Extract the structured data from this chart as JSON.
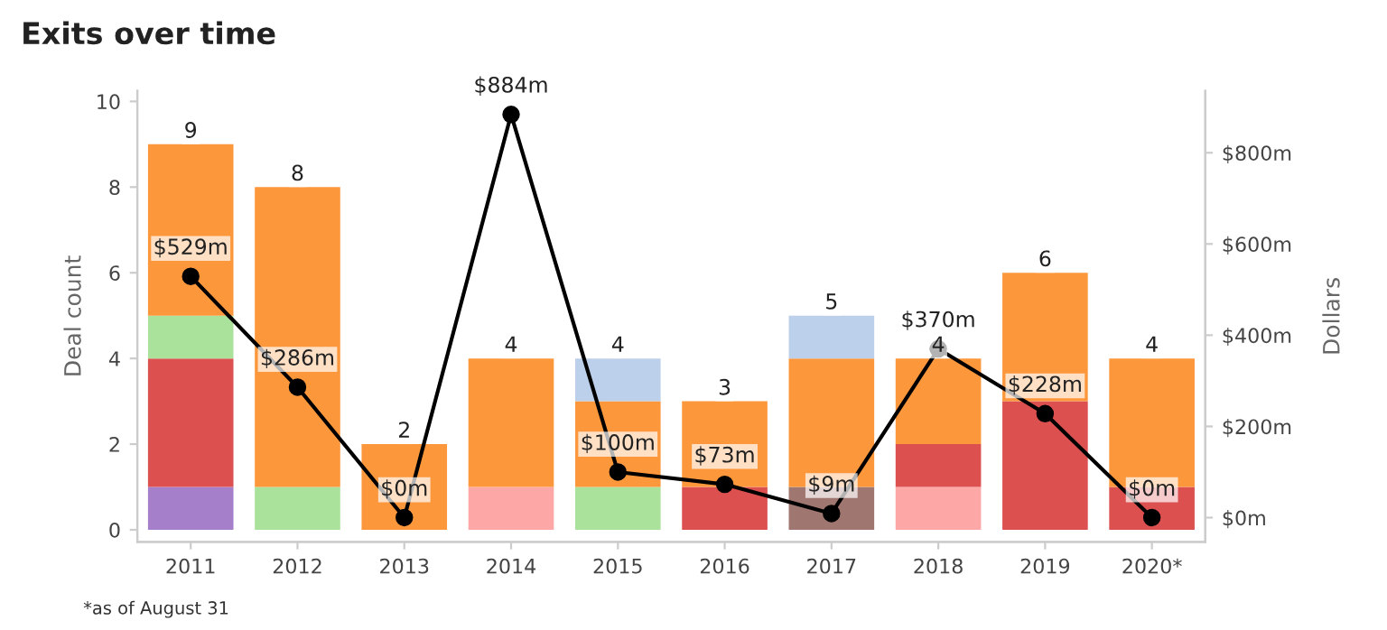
{
  "chart_data": {
    "type": "bar",
    "title": "Exits over time",
    "ylabel": "Deal count",
    "y2label": "Dollars",
    "categories": [
      "2011",
      "2012",
      "2013",
      "2014",
      "2015",
      "2016",
      "2017",
      "2018",
      "2019",
      "2020*"
    ],
    "stacked": true,
    "series": [
      {
        "color": "#a57fc9",
        "values": [
          1,
          0,
          0,
          0,
          0,
          0,
          0,
          0,
          0,
          0
        ]
      },
      {
        "color": "#fea7a7",
        "values": [
          0,
          0,
          0,
          1,
          0,
          0,
          0,
          1,
          0,
          0
        ]
      },
      {
        "color": "#a07670",
        "values": [
          0,
          0,
          0,
          0,
          0,
          0,
          1,
          0,
          0,
          0
        ]
      },
      {
        "color": "#dc5050",
        "values": [
          3,
          0,
          0,
          0,
          0,
          1,
          0,
          1,
          3,
          1
        ]
      },
      {
        "color": "#abe29b",
        "values": [
          1,
          1,
          0,
          0,
          1,
          0,
          0,
          0,
          0,
          0
        ]
      },
      {
        "color": "#fd973b",
        "values": [
          4,
          7,
          2,
          3,
          2,
          2,
          3,
          2,
          3,
          3
        ]
      },
      {
        "color": "#bcd0eb",
        "values": [
          0,
          0,
          0,
          0,
          1,
          0,
          1,
          0,
          0,
          0
        ]
      },
      {
        "type": "line",
        "axis": "y2",
        "color": "#000000",
        "marker": "circle",
        "values": [
          529,
          286,
          0,
          884,
          100,
          73,
          9,
          370,
          228,
          0
        ],
        "value_labels": [
          "$529m",
          "$286m",
          "$0m",
          "$884m",
          "$100m",
          "$73m",
          "$9m",
          "$370m",
          "$228m",
          "$0m"
        ]
      }
    ],
    "totals": [
      "9",
      "8",
      "2",
      "4",
      "4",
      "3",
      "5",
      "4",
      "6",
      "4"
    ],
    "ylim": [
      -0.28,
      10.25
    ],
    "yticks": [
      0,
      2,
      4,
      6,
      8,
      10
    ],
    "y2lim": [
      -53,
      936
    ],
    "y2ticks": [
      {
        "value": 0,
        "label": "$0m"
      },
      {
        "value": 200,
        "label": "$200m"
      },
      {
        "value": 400,
        "label": "$400m"
      },
      {
        "value": 600,
        "label": "$600m"
      },
      {
        "value": 800,
        "label": "$800m"
      }
    ],
    "grid": false,
    "legend": false,
    "annotations": [
      "*as of August 31"
    ]
  }
}
